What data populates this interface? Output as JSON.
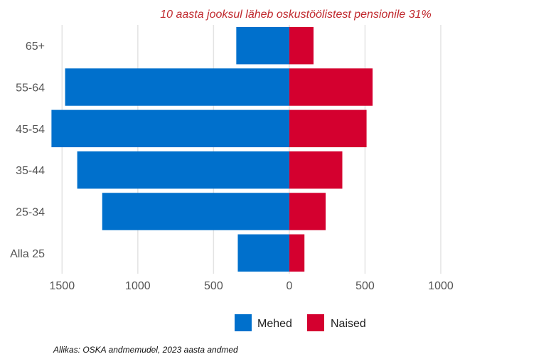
{
  "chart_data": {
    "type": "bar",
    "orientation": "horizontal-diverging",
    "title": "10 aasta jooksul läheb oskustöölistest pensionile 31%",
    "categories": [
      "65+",
      "55-64",
      "45-54",
      "35-44",
      "25-34",
      "Alla 25"
    ],
    "series": [
      {
        "name": "Mehed",
        "color": "#0070cc",
        "values": [
          350,
          1480,
          1570,
          1400,
          1235,
          340
        ]
      },
      {
        "name": "Naised",
        "color": "#d4002f",
        "values": [
          160,
          550,
          510,
          350,
          240,
          100
        ]
      }
    ],
    "xticks": [
      {
        "value": -1500,
        "label": "1500"
      },
      {
        "value": -1000,
        "label": "1000"
      },
      {
        "value": -500,
        "label": "500"
      },
      {
        "value": 0,
        "label": "0"
      },
      {
        "value": 500,
        "label": "500"
      },
      {
        "value": 1000,
        "label": "1000"
      }
    ],
    "xlim": [
      -1600,
      1000
    ],
    "grid": "vertical",
    "legend_position": "bottom",
    "caption": "Allikas: OSKA andmemudel, 2023 aasta andmed"
  }
}
